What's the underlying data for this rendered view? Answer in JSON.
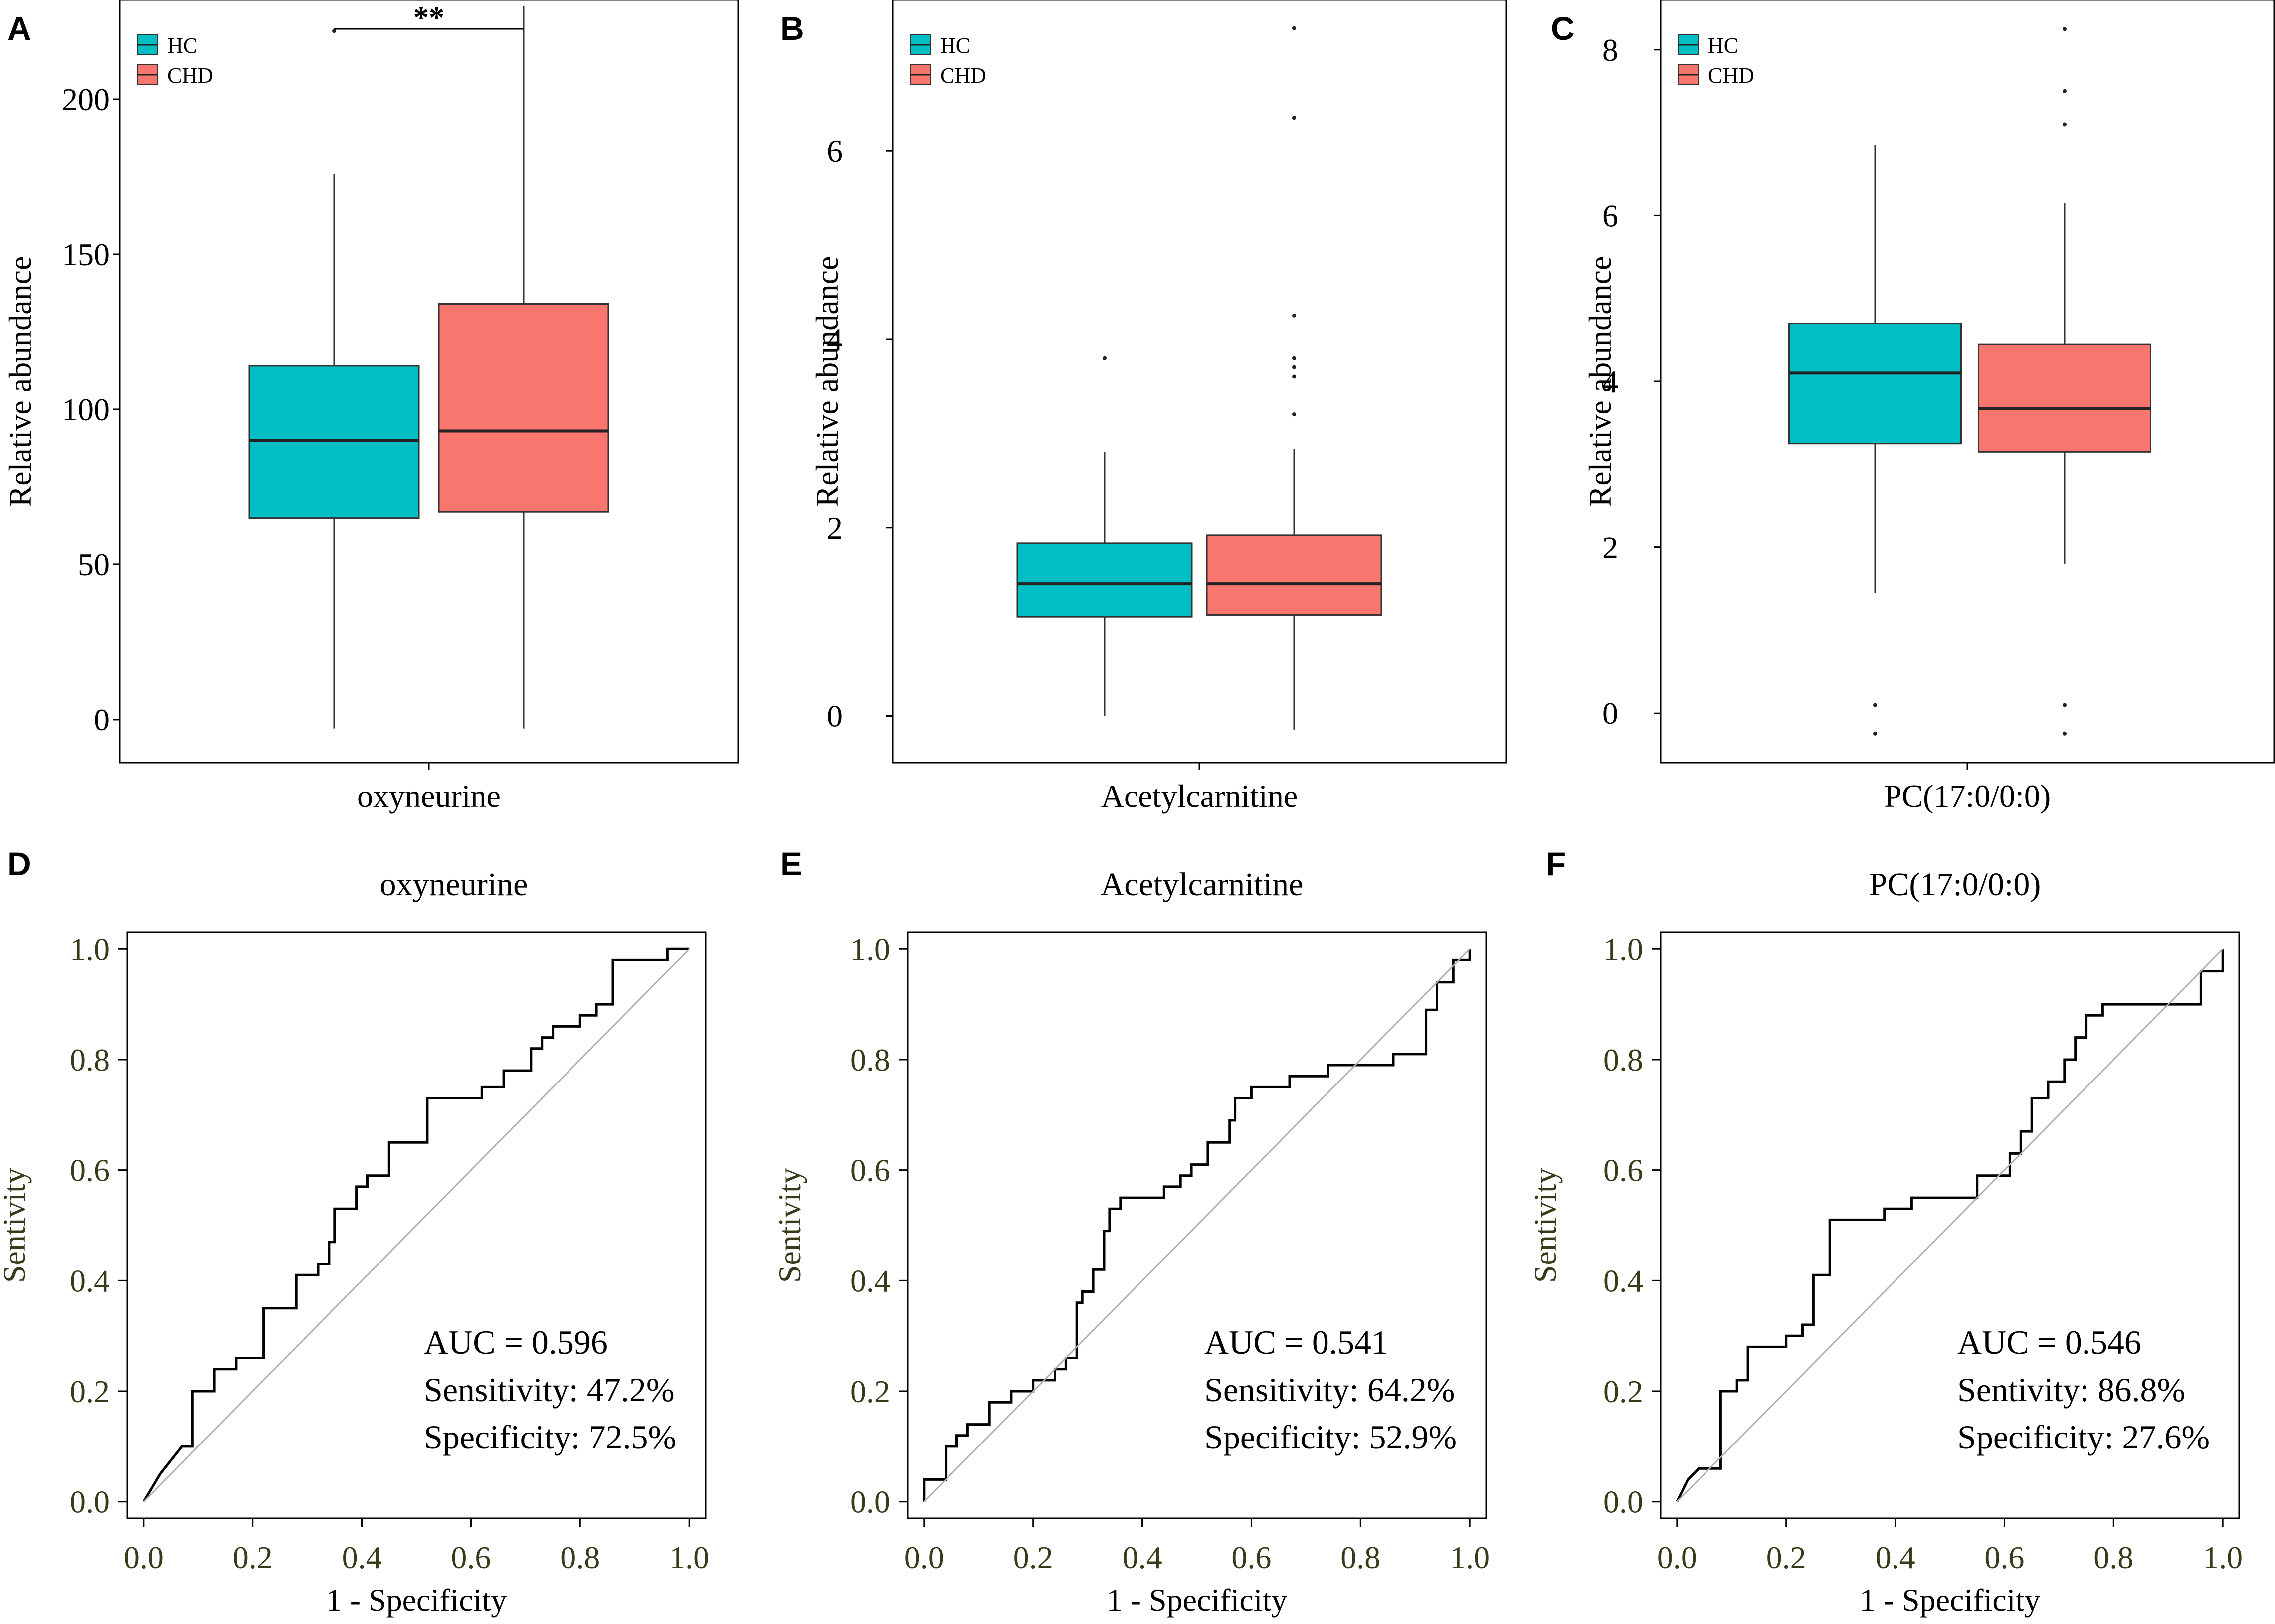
{
  "colors": {
    "hc": "#00BFC4",
    "chd": "#F8766D",
    "axis": "#000000",
    "roc_tick_text": "#3a3a1a",
    "diagonal": "#b0b0b0"
  },
  "chart_data": [
    {
      "type": "boxplot",
      "panel_label": "A",
      "xlabel": "oxyneurine",
      "ylabel": "Relative abundance",
      "ylim": [
        -14,
        232
      ],
      "yticks": [
        0,
        50,
        100,
        150,
        200
      ],
      "legend": [
        {
          "name": "HC",
          "color": "#00BFC4"
        },
        {
          "name": "CHD",
          "color": "#F8766D"
        }
      ],
      "legend_position": "top-left",
      "significance": "**",
      "groups": [
        {
          "name": "HC",
          "whisker_low": -3,
          "q1": 65,
          "median": 90,
          "q3": 114,
          "whisker_high": 176,
          "outliers": [
            222
          ]
        },
        {
          "name": "CHD",
          "whisker_low": -3,
          "q1": 67,
          "median": 93,
          "q3": 134,
          "whisker_high": 230,
          "outliers": []
        }
      ]
    },
    {
      "type": "boxplot",
      "panel_label": "B",
      "xlabel": "Acetylcarnitine",
      "ylabel": "Relative abundance",
      "ylim": [
        -0.5,
        7.6
      ],
      "yticks": [
        0,
        2,
        4,
        6
      ],
      "legend": [
        {
          "name": "HC",
          "color": "#00BFC4"
        },
        {
          "name": "CHD",
          "color": "#F8766D"
        }
      ],
      "legend_position": "top-left",
      "groups": [
        {
          "name": "HC",
          "whisker_low": 0.0,
          "q1": 1.05,
          "median": 1.4,
          "q3": 1.83,
          "whisker_high": 2.8,
          "outliers": [
            3.8
          ]
        },
        {
          "name": "CHD",
          "whisker_low": -0.15,
          "q1": 1.07,
          "median": 1.4,
          "q3": 1.92,
          "whisker_high": 2.83,
          "outliers": [
            3.2,
            3.6,
            3.7,
            3.8,
            4.25,
            6.35,
            7.3
          ]
        }
      ]
    },
    {
      "type": "boxplot",
      "panel_label": "C",
      "xlabel": "PC(17:0/0:0)",
      "ylabel": "Relative abundance",
      "ylim": [
        -0.6,
        8.6
      ],
      "yticks": [
        0,
        2,
        4,
        6,
        8
      ],
      "legend": [
        {
          "name": "HC",
          "color": "#00BFC4"
        },
        {
          "name": "CHD",
          "color": "#F8766D"
        }
      ],
      "legend_position": "top-left",
      "groups": [
        {
          "name": "HC",
          "whisker_low": 1.45,
          "q1": 3.25,
          "median": 4.1,
          "q3": 4.7,
          "whisker_high": 6.85,
          "outliers": [
            0.1,
            -0.25
          ]
        },
        {
          "name": "CHD",
          "whisker_low": 1.8,
          "q1": 3.15,
          "median": 3.67,
          "q3": 4.45,
          "whisker_high": 6.15,
          "outliers": [
            0.1,
            -0.25,
            7.1,
            7.5,
            8.25
          ]
        }
      ]
    },
    {
      "type": "line",
      "panel_label": "D",
      "title": "oxyneurine",
      "xlabel": "1 - Specificity",
      "ylabel": "Sentivity",
      "xlim": [
        -0.03,
        1.03
      ],
      "ylim": [
        -0.03,
        1.03
      ],
      "xticks": [
        "0.0",
        "0.2",
        "0.4",
        "0.6",
        "0.8",
        "1.0"
      ],
      "yticks": [
        "0.0",
        "0.2",
        "0.4",
        "0.6",
        "0.8",
        "1.0"
      ],
      "annotations": [
        "AUC = 0.596",
        "Sensitivity: 47.2%",
        "Specificity: 72.5%"
      ],
      "series": [
        {
          "name": "ROC",
          "x": [
            0,
            0.03,
            0.07,
            0.09,
            0.09,
            0.13,
            0.13,
            0.17,
            0.17,
            0.22,
            0.22,
            0.28,
            0.28,
            0.32,
            0.32,
            0.34,
            0.34,
            0.35,
            0.35,
            0.39,
            0.39,
            0.41,
            0.41,
            0.45,
            0.45,
            0.52,
            0.52,
            0.62,
            0.62,
            0.66,
            0.66,
            0.71,
            0.71,
            0.73,
            0.73,
            0.75,
            0.75,
            0.8,
            0.8,
            0.83,
            0.83,
            0.86,
            0.86,
            0.96,
            0.96,
            1
          ],
          "y": [
            0,
            0.05,
            0.1,
            0.1,
            0.2,
            0.2,
            0.24,
            0.24,
            0.26,
            0.26,
            0.35,
            0.35,
            0.41,
            0.41,
            0.43,
            0.43,
            0.47,
            0.47,
            0.53,
            0.53,
            0.57,
            0.57,
            0.59,
            0.59,
            0.65,
            0.65,
            0.73,
            0.73,
            0.75,
            0.75,
            0.78,
            0.78,
            0.82,
            0.82,
            0.84,
            0.84,
            0.86,
            0.86,
            0.88,
            0.88,
            0.9,
            0.9,
            0.98,
            0.98,
            1,
            1
          ]
        },
        {
          "name": "Reference",
          "x": [
            0,
            1
          ],
          "y": [
            0,
            1
          ]
        }
      ]
    },
    {
      "type": "line",
      "panel_label": "E",
      "title": "Acetylcarnitine",
      "xlabel": "1 - Specificity",
      "ylabel": "Sentivity",
      "xlim": [
        -0.03,
        1.03
      ],
      "ylim": [
        -0.03,
        1.03
      ],
      "xticks": [
        "0.0",
        "0.2",
        "0.4",
        "0.6",
        "0.8",
        "1.0"
      ],
      "yticks": [
        "0.0",
        "0.2",
        "0.4",
        "0.6",
        "0.8",
        "1.0"
      ],
      "annotations": [
        "AUC = 0.541",
        "Sensitivity: 64.2%",
        "Specificity: 52.9%"
      ],
      "series": [
        {
          "name": "ROC",
          "x": [
            0,
            0,
            0.04,
            0.04,
            0.06,
            0.06,
            0.08,
            0.08,
            0.12,
            0.12,
            0.16,
            0.16,
            0.2,
            0.2,
            0.24,
            0.24,
            0.26,
            0.26,
            0.28,
            0.28,
            0.29,
            0.29,
            0.31,
            0.31,
            0.33,
            0.33,
            0.34,
            0.34,
            0.36,
            0.36,
            0.44,
            0.44,
            0.47,
            0.47,
            0.49,
            0.49,
            0.52,
            0.52,
            0.56,
            0.56,
            0.57,
            0.57,
            0.6,
            0.6,
            0.67,
            0.67,
            0.74,
            0.74,
            0.86,
            0.86,
            0.92,
            0.92,
            0.94,
            0.94,
            0.97,
            0.97,
            1,
            1
          ],
          "y": [
            0,
            0.04,
            0.04,
            0.1,
            0.1,
            0.12,
            0.12,
            0.14,
            0.14,
            0.18,
            0.18,
            0.2,
            0.2,
            0.22,
            0.22,
            0.24,
            0.24,
            0.26,
            0.26,
            0.36,
            0.36,
            0.38,
            0.38,
            0.42,
            0.42,
            0.49,
            0.49,
            0.53,
            0.53,
            0.55,
            0.55,
            0.57,
            0.57,
            0.59,
            0.59,
            0.61,
            0.61,
            0.65,
            0.65,
            0.69,
            0.69,
            0.73,
            0.73,
            0.75,
            0.75,
            0.77,
            0.77,
            0.79,
            0.79,
            0.81,
            0.81,
            0.89,
            0.89,
            0.94,
            0.94,
            0.98,
            0.98,
            1
          ]
        },
        {
          "name": "Reference",
          "x": [
            0,
            1
          ],
          "y": [
            0,
            1
          ]
        }
      ]
    },
    {
      "type": "line",
      "panel_label": "F",
      "title": "PC(17:0/0:0)",
      "xlabel": "1 - Specificity",
      "ylabel": "Sentivity",
      "xlim": [
        -0.03,
        1.03
      ],
      "ylim": [
        -0.03,
        1.03
      ],
      "xticks": [
        "0.0",
        "0.2",
        "0.4",
        "0.6",
        "0.8",
        "1.0"
      ],
      "yticks": [
        "0.0",
        "0.2",
        "0.4",
        "0.6",
        "0.8",
        "1.0"
      ],
      "annotations": [
        "AUC = 0.546",
        "Sentivity: 86.8%",
        "Specificity: 27.6%"
      ],
      "series": [
        {
          "name": "ROC",
          "x": [
            0,
            0.02,
            0.04,
            0.08,
            0.08,
            0.11,
            0.11,
            0.13,
            0.13,
            0.2,
            0.2,
            0.23,
            0.23,
            0.25,
            0.25,
            0.28,
            0.28,
            0.38,
            0.38,
            0.43,
            0.43,
            0.48,
            0.48,
            0.55,
            0.55,
            0.61,
            0.61,
            0.63,
            0.63,
            0.65,
            0.65,
            0.68,
            0.68,
            0.71,
            0.71,
            0.73,
            0.73,
            0.75,
            0.75,
            0.78,
            0.78,
            0.84,
            0.84,
            0.96,
            0.96,
            1,
            1
          ],
          "y": [
            0,
            0.04,
            0.06,
            0.06,
            0.2,
            0.2,
            0.22,
            0.22,
            0.28,
            0.28,
            0.3,
            0.3,
            0.32,
            0.32,
            0.41,
            0.41,
            0.51,
            0.51,
            0.53,
            0.53,
            0.55,
            0.55,
            0.55,
            0.55,
            0.59,
            0.59,
            0.63,
            0.63,
            0.67,
            0.67,
            0.73,
            0.73,
            0.76,
            0.76,
            0.8,
            0.8,
            0.84,
            0.84,
            0.88,
            0.88,
            0.9,
            0.9,
            0.9,
            0.9,
            0.96,
            0.96,
            1
          ]
        },
        {
          "name": "Reference",
          "x": [
            0,
            1
          ],
          "y": [
            0,
            1
          ]
        }
      ]
    }
  ]
}
